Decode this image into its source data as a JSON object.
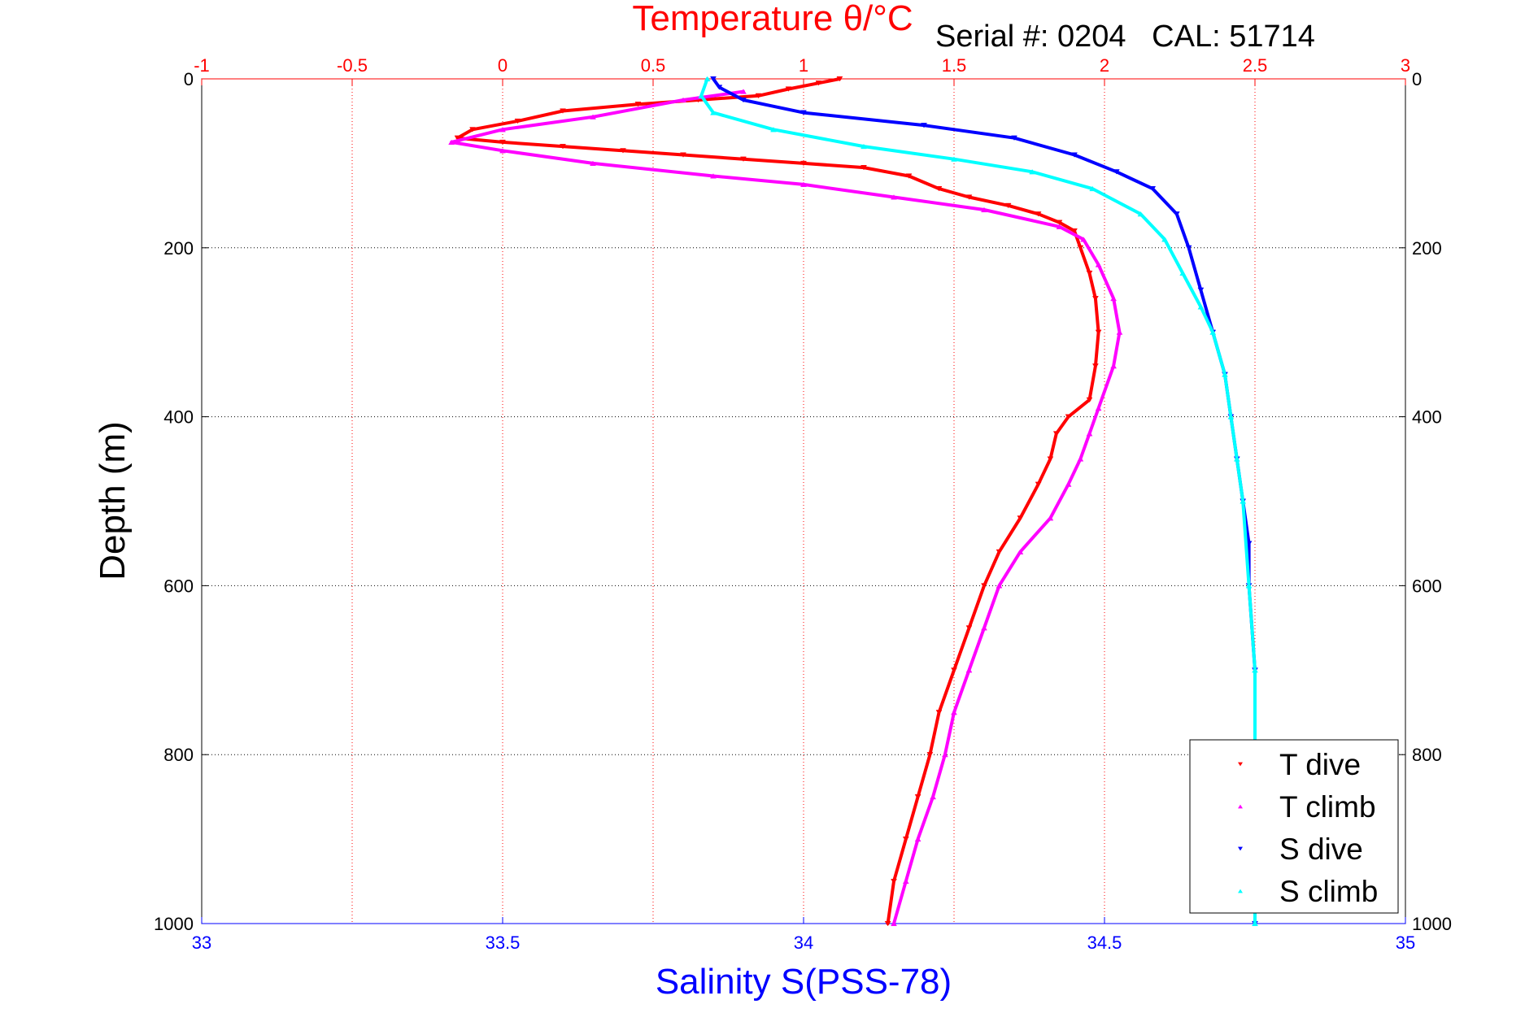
{
  "chart_data": {
    "type": "scatter",
    "title": "Temperature θ/°C",
    "subtitle": "Serial #: 0204   CAL: 51714",
    "ylabel": "Depth (m)",
    "xlabel_bottom": "Salinity S(PSS-78)",
    "xlabel_top": "Temperature θ/°C",
    "ylim": [
      0,
      1000
    ],
    "y_reversed": true,
    "x_bottom_lim": [
      33,
      35
    ],
    "x_top_lim": [
      -1,
      3
    ],
    "x_bottom_ticks": [
      "33",
      "33.5",
      "34",
      "34.5",
      "35"
    ],
    "x_top_ticks": [
      "-1",
      "-0.5",
      "0",
      "0.5",
      "1",
      "1.5",
      "2",
      "2.5",
      "3"
    ],
    "y_ticks": [
      "0",
      "200",
      "400",
      "600",
      "800",
      "1000"
    ],
    "grid": true,
    "legend_position": "bottom-right",
    "colors": {
      "temperature_axis": "#ff0000",
      "salinity_axis": "#0000ff",
      "grid_y": "#000000",
      "grid_x": "#ff0000"
    },
    "series": [
      {
        "name": "T dive",
        "axis": "top",
        "color": "#ff0000",
        "marker": "triangle-down",
        "points": [
          [
            1.12,
            0
          ],
          [
            1.05,
            5
          ],
          [
            0.95,
            12
          ],
          [
            0.85,
            20
          ],
          [
            0.65,
            25
          ],
          [
            0.45,
            30
          ],
          [
            0.2,
            38
          ],
          [
            0.05,
            50
          ],
          [
            -0.1,
            60
          ],
          [
            -0.15,
            70
          ],
          [
            0.0,
            75
          ],
          [
            0.2,
            80
          ],
          [
            0.4,
            85
          ],
          [
            0.6,
            90
          ],
          [
            0.8,
            95
          ],
          [
            1.0,
            100
          ],
          [
            1.2,
            105
          ],
          [
            1.35,
            115
          ],
          [
            1.45,
            130
          ],
          [
            1.55,
            140
          ],
          [
            1.68,
            150
          ],
          [
            1.78,
            160
          ],
          [
            1.85,
            170
          ],
          [
            1.9,
            180
          ],
          [
            1.92,
            200
          ],
          [
            1.95,
            230
          ],
          [
            1.97,
            260
          ],
          [
            1.98,
            300
          ],
          [
            1.97,
            340
          ],
          [
            1.95,
            380
          ],
          [
            1.88,
            400
          ],
          [
            1.84,
            420
          ],
          [
            1.82,
            450
          ],
          [
            1.78,
            480
          ],
          [
            1.72,
            520
          ],
          [
            1.65,
            560
          ],
          [
            1.6,
            600
          ],
          [
            1.55,
            650
          ],
          [
            1.5,
            700
          ],
          [
            1.45,
            750
          ],
          [
            1.42,
            800
          ],
          [
            1.38,
            850
          ],
          [
            1.34,
            900
          ],
          [
            1.3,
            950
          ],
          [
            1.28,
            1000
          ]
        ]
      },
      {
        "name": "T climb",
        "axis": "top",
        "color": "#ff00ff",
        "marker": "triangle-up",
        "points": [
          [
            0.8,
            15
          ],
          [
            0.6,
            25
          ],
          [
            0.3,
            45
          ],
          [
            0.0,
            60
          ],
          [
            -0.17,
            75
          ],
          [
            0.0,
            85
          ],
          [
            0.3,
            100
          ],
          [
            0.7,
            115
          ],
          [
            1.0,
            125
          ],
          [
            1.3,
            140
          ],
          [
            1.6,
            155
          ],
          [
            1.85,
            175
          ],
          [
            1.93,
            190
          ],
          [
            1.98,
            220
          ],
          [
            2.03,
            260
          ],
          [
            2.05,
            300
          ],
          [
            2.03,
            340
          ],
          [
            1.98,
            390
          ],
          [
            1.95,
            420
          ],
          [
            1.92,
            450
          ],
          [
            1.88,
            480
          ],
          [
            1.82,
            520
          ],
          [
            1.72,
            560
          ],
          [
            1.65,
            600
          ],
          [
            1.6,
            650
          ],
          [
            1.55,
            700
          ],
          [
            1.5,
            750
          ],
          [
            1.47,
            800
          ],
          [
            1.43,
            850
          ],
          [
            1.38,
            900
          ],
          [
            1.34,
            950
          ],
          [
            1.3,
            1000
          ]
        ]
      },
      {
        "name": "S dive",
        "axis": "bottom",
        "color": "#0000ff",
        "marker": "triangle-down",
        "points": [
          [
            33.85,
            0
          ],
          [
            33.86,
            10
          ],
          [
            33.9,
            25
          ],
          [
            34.0,
            40
          ],
          [
            34.2,
            55
          ],
          [
            34.35,
            70
          ],
          [
            34.45,
            90
          ],
          [
            34.52,
            110
          ],
          [
            34.58,
            130
          ],
          [
            34.62,
            160
          ],
          [
            34.64,
            200
          ],
          [
            34.66,
            250
          ],
          [
            34.68,
            300
          ],
          [
            34.7,
            350
          ],
          [
            34.71,
            400
          ],
          [
            34.72,
            450
          ],
          [
            34.73,
            500
          ],
          [
            34.74,
            550
          ],
          [
            34.74,
            600
          ],
          [
            34.75,
            700
          ],
          [
            34.75,
            800
          ],
          [
            34.75,
            900
          ],
          [
            34.75,
            1000
          ]
        ]
      },
      {
        "name": "S climb",
        "axis": "bottom",
        "color": "#00ffff",
        "marker": "triangle-up",
        "points": [
          [
            33.84,
            0
          ],
          [
            33.83,
            20
          ],
          [
            33.85,
            40
          ],
          [
            33.95,
            60
          ],
          [
            34.1,
            80
          ],
          [
            34.25,
            95
          ],
          [
            34.38,
            110
          ],
          [
            34.48,
            130
          ],
          [
            34.56,
            160
          ],
          [
            34.6,
            190
          ],
          [
            34.63,
            230
          ],
          [
            34.66,
            270
          ],
          [
            34.68,
            300
          ],
          [
            34.7,
            350
          ],
          [
            34.71,
            400
          ],
          [
            34.72,
            450
          ],
          [
            34.73,
            500
          ],
          [
            34.74,
            600
          ],
          [
            34.75,
            700
          ],
          [
            34.75,
            800
          ],
          [
            34.75,
            900
          ],
          [
            34.75,
            1000
          ]
        ]
      }
    ]
  }
}
